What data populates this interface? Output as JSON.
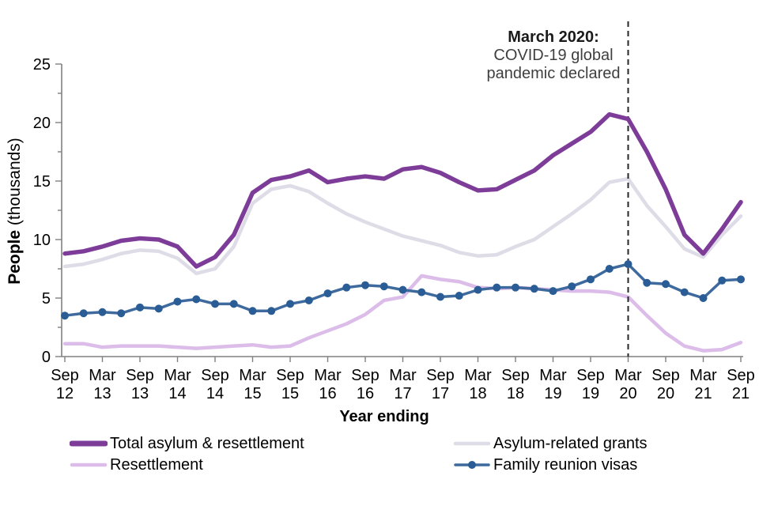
{
  "chart_data": {
    "type": "line",
    "y_axis_title_bold": "People",
    "y_axis_title_rest": " (thousands)",
    "x_axis_title": "Year ending",
    "ylim": [
      0,
      25
    ],
    "y_ticks": [
      0,
      5,
      10,
      15,
      20,
      25
    ],
    "y_minor_step": 2.5,
    "x_frequency": "quarterly",
    "x_tick_labels": [
      {
        "month": "Sep",
        "year": "12"
      },
      {
        "month": "Mar",
        "year": "13"
      },
      {
        "month": "Sep",
        "year": "13"
      },
      {
        "month": "Mar",
        "year": "14"
      },
      {
        "month": "Sep",
        "year": "14"
      },
      {
        "month": "Mar",
        "year": "15"
      },
      {
        "month": "Sep",
        "year": "15"
      },
      {
        "month": "Mar",
        "year": "16"
      },
      {
        "month": "Sep",
        "year": "16"
      },
      {
        "month": "Mar",
        "year": "17"
      },
      {
        "month": "Sep",
        "year": "17"
      },
      {
        "month": "Mar",
        "year": "18"
      },
      {
        "month": "Sep",
        "year": "18"
      },
      {
        "month": "Mar",
        "year": "19"
      },
      {
        "month": "Sep",
        "year": "19"
      },
      {
        "month": "Mar",
        "year": "20"
      },
      {
        "month": "Sep",
        "year": "20"
      },
      {
        "month": "Mar",
        "year": "21"
      },
      {
        "month": "Sep",
        "year": "21"
      }
    ],
    "annotation": {
      "line1": "March 2020:",
      "line2": "COVID-19 global",
      "line3": "pandemic declared",
      "x_index": 30,
      "line_color": "#262626"
    },
    "axis_color": "#808080",
    "series": [
      {
        "name": "Total asylum & resettlement",
        "slug": "total-asylum-resettlement",
        "color": "#7e3c99",
        "stroke_width": 5.5,
        "markers": false,
        "values": [
          8.8,
          9.0,
          9.4,
          9.9,
          10.1,
          10.0,
          9.4,
          7.7,
          8.5,
          10.4,
          14.0,
          15.1,
          15.4,
          15.9,
          14.9,
          15.2,
          15.4,
          15.2,
          16.0,
          16.2,
          15.7,
          14.9,
          14.2,
          14.3,
          15.1,
          15.9,
          17.2,
          18.2,
          19.2,
          20.7,
          20.3,
          17.5,
          14.3,
          10.4,
          8.8,
          10.9,
          13.2
        ]
      },
      {
        "name": "Asylum-related grants",
        "slug": "asylum-related-grants",
        "color": "#dedce6",
        "stroke_width": 4.5,
        "markers": false,
        "values": [
          7.7,
          7.9,
          8.3,
          8.8,
          9.1,
          9.0,
          8.4,
          7.1,
          7.5,
          9.4,
          13.1,
          14.3,
          14.6,
          14.1,
          13.1,
          12.2,
          11.5,
          10.9,
          10.3,
          9.9,
          9.5,
          8.9,
          8.6,
          8.7,
          9.4,
          10.0,
          11.1,
          12.2,
          13.4,
          14.9,
          15.2,
          12.9,
          11.1,
          9.2,
          8.5,
          10.4,
          12.0
        ]
      },
      {
        "name": "Resettlement",
        "slug": "resettlement",
        "color": "#dcbce9",
        "stroke_width": 4.5,
        "markers": false,
        "values": [
          1.1,
          1.1,
          0.8,
          0.9,
          0.9,
          0.9,
          0.8,
          0.7,
          0.8,
          0.9,
          1.0,
          0.8,
          0.9,
          1.6,
          2.2,
          2.8,
          3.6,
          4.8,
          5.1,
          6.9,
          6.6,
          6.4,
          5.9,
          5.8,
          5.9,
          5.8,
          5.7,
          5.6,
          5.6,
          5.5,
          5.1,
          3.5,
          2.0,
          0.9,
          0.5,
          0.6,
          1.2
        ]
      },
      {
        "name": "Family reunion visas",
        "slug": "family-reunion-visas",
        "color": "#3e6a9e",
        "stroke_width": 3.5,
        "markers": true,
        "marker_color": "#2a5d95",
        "marker_radius": 5,
        "values": [
          3.5,
          3.7,
          3.8,
          3.7,
          4.2,
          4.1,
          4.7,
          4.9,
          4.5,
          4.5,
          3.9,
          3.9,
          4.5,
          4.8,
          5.4,
          5.9,
          6.1,
          6.0,
          5.7,
          5.5,
          5.1,
          5.2,
          5.7,
          5.9,
          5.9,
          5.8,
          5.6,
          6.0,
          6.6,
          7.5,
          7.9,
          6.3,
          6.2,
          5.5,
          5.0,
          6.5,
          6.6
        ]
      }
    ],
    "legend_columns": [
      [
        0,
        2
      ],
      [
        1,
        3
      ]
    ]
  }
}
